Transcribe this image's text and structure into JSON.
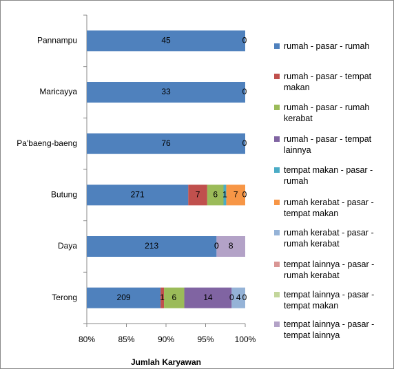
{
  "chart_data": {
    "type": "bar",
    "orientation": "horizontal",
    "stacking": "percent",
    "x_label": "Jumlah Karyawan",
    "categories": [
      "Pannampu",
      "Maricayya",
      "Pa'baeng-baeng",
      "Butung",
      "Daya",
      "Terong"
    ],
    "series": [
      {
        "name": "rumah - pasar - rumah",
        "color": "#4f81bd",
        "values": [
          45,
          33,
          76,
          271,
          213,
          209
        ]
      },
      {
        "name": "rumah - pasar - tempat makan",
        "color": "#c0504d",
        "values": [
          null,
          null,
          null,
          7,
          0,
          1
        ]
      },
      {
        "name": "rumah - pasar - rumah kerabat",
        "color": "#9bbb59",
        "values": [
          null,
          null,
          null,
          6,
          0,
          6
        ]
      },
      {
        "name": "rumah - pasar - tempat lainnya",
        "color": "#8064a2",
        "values": [
          null,
          null,
          null,
          null,
          null,
          14
        ]
      },
      {
        "name": "tempat makan - pasar - rumah",
        "color": "#4bacc6",
        "values": [
          null,
          null,
          null,
          1,
          null,
          0
        ]
      },
      {
        "name": "rumah kerabat - pasar - tempat makan",
        "color": "#f79646",
        "values": [
          null,
          null,
          null,
          7,
          null,
          null
        ]
      },
      {
        "name": "rumah kerabat - pasar - rumah kerabat",
        "color": "#95b3d7",
        "values": [
          null,
          null,
          null,
          null,
          null,
          4
        ]
      },
      {
        "name": "tempat lainnya - pasar - rumah kerabat",
        "color": "#d99694",
        "values": [
          null,
          null,
          null,
          null,
          null,
          0
        ]
      },
      {
        "name": "tempat lainnya - pasar - tempat makan",
        "color": "#c3d69b",
        "values": [
          null,
          null,
          null,
          null,
          null,
          null
        ]
      },
      {
        "name": "tempat lainnya - pasar - tempat lainnya",
        "color": "#b3a2c7",
        "values": [
          0,
          0,
          0,
          0,
          8,
          null
        ]
      }
    ],
    "xlim": [
      80,
      100
    ],
    "xticks": [
      {
        "value": 80,
        "label": "80%"
      },
      {
        "value": 85,
        "label": "85%"
      },
      {
        "value": 90,
        "label": "90%"
      },
      {
        "value": 95,
        "label": "95%"
      },
      {
        "value": 100,
        "label": "100%"
      }
    ]
  }
}
